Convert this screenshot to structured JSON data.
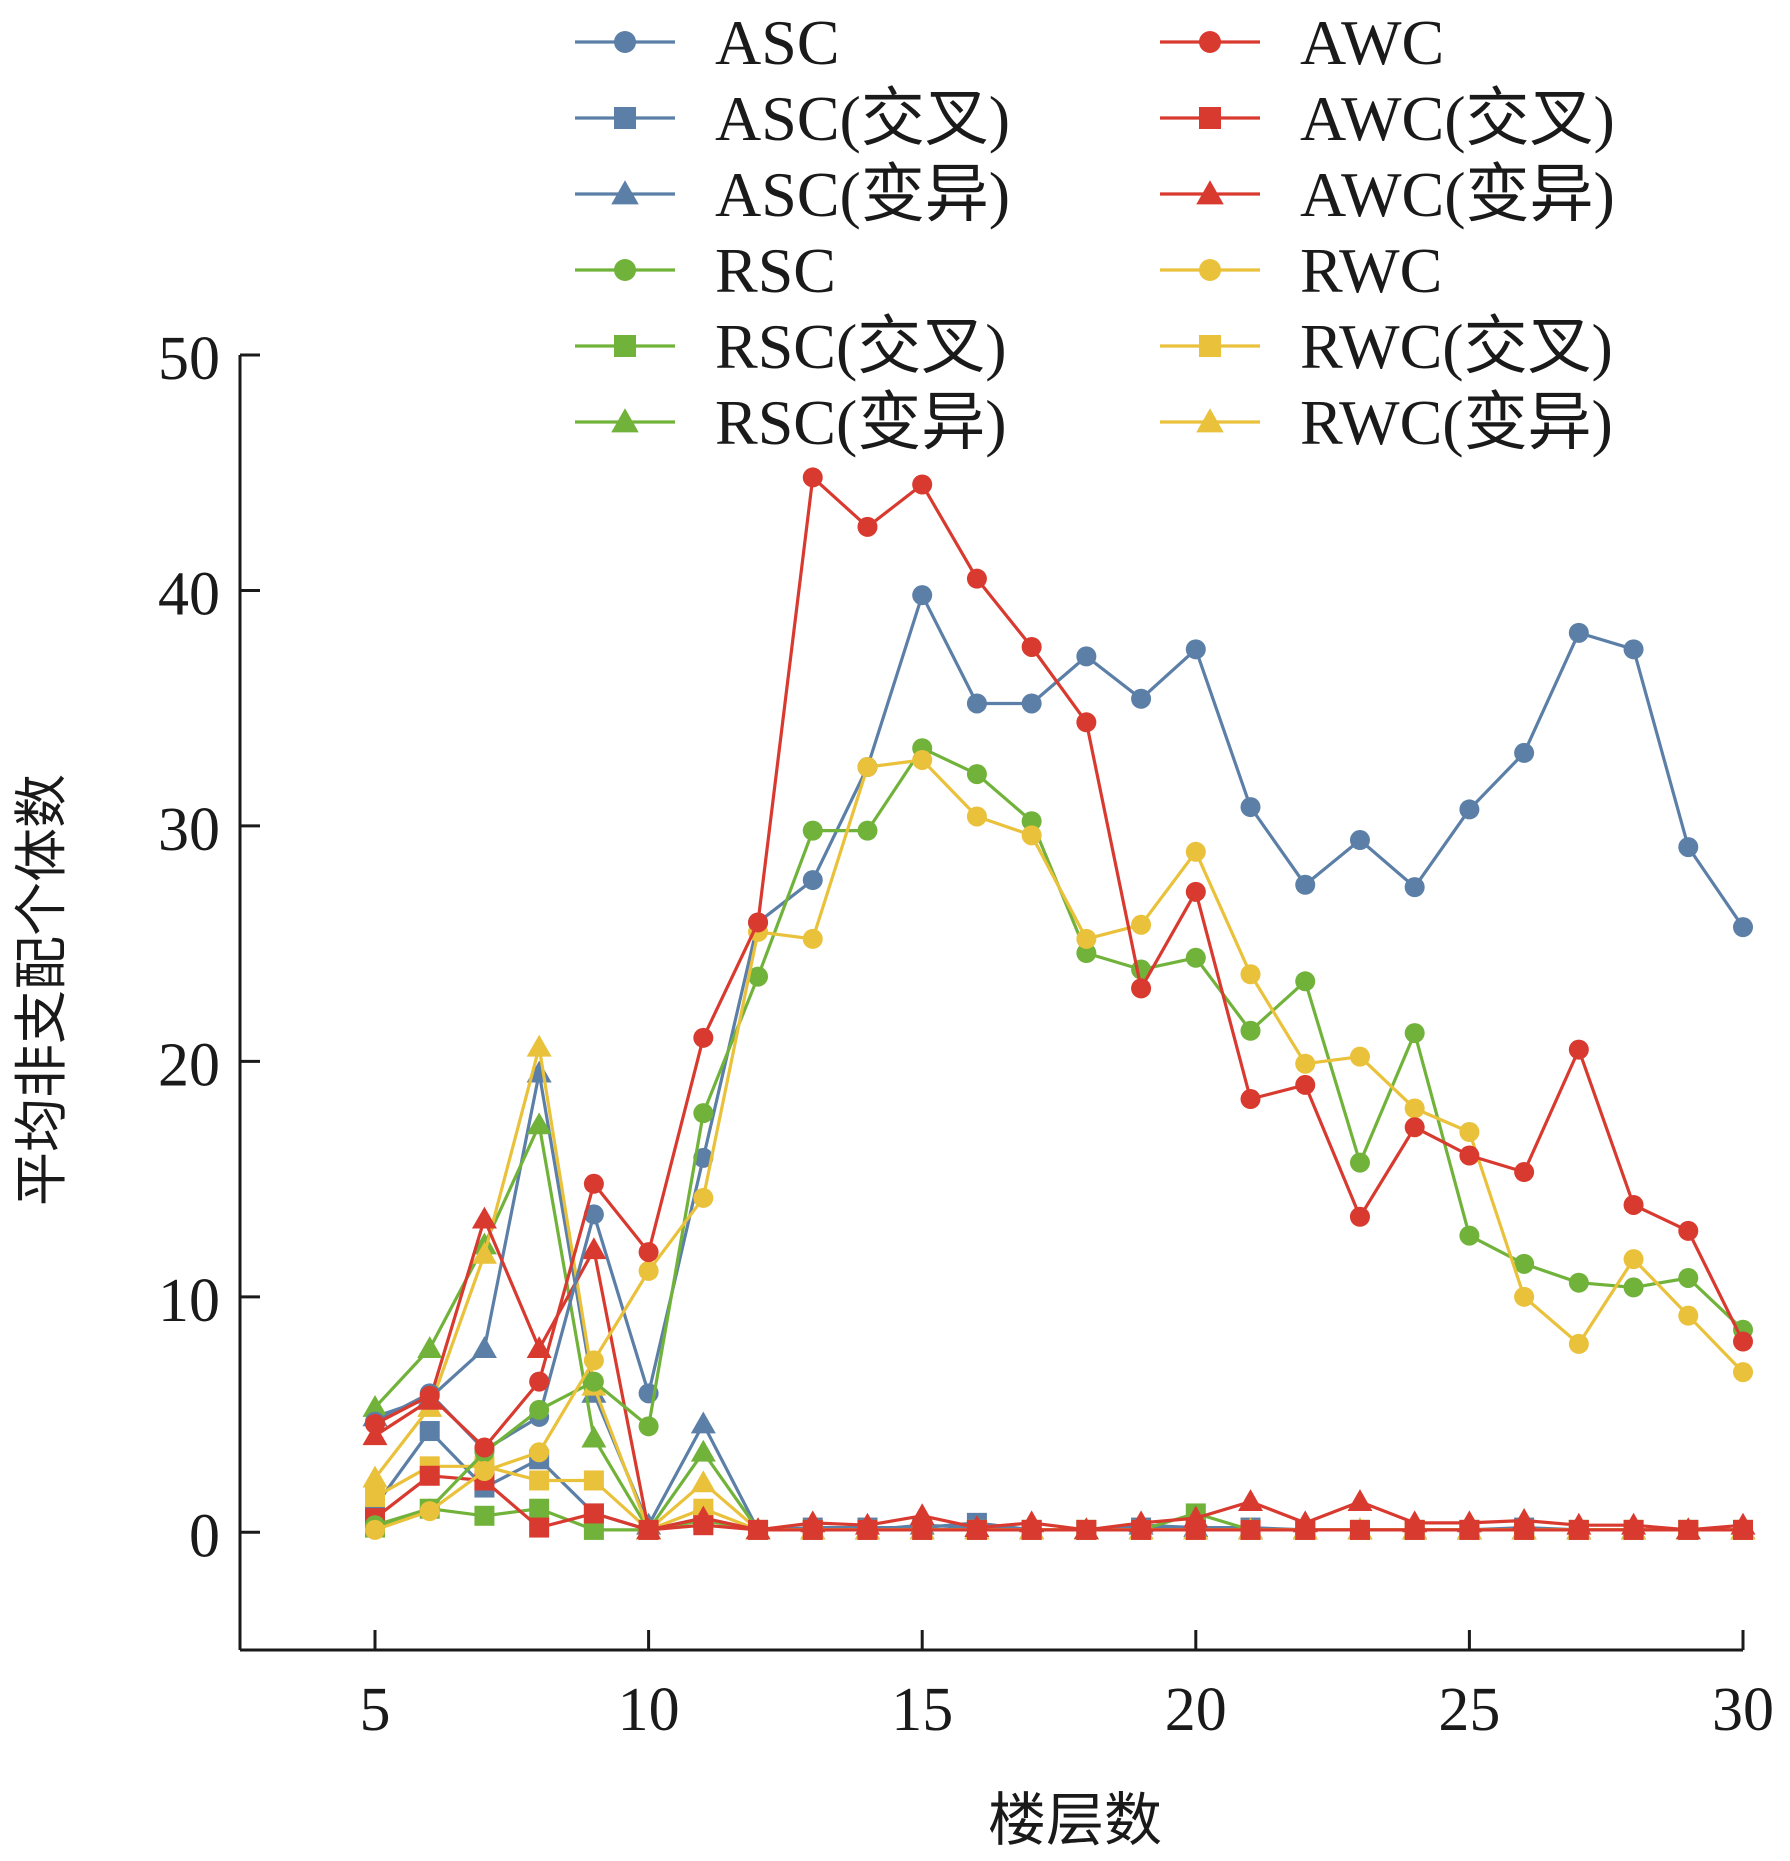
{
  "chart_data": {
    "type": "line",
    "title": "",
    "xlabel": "楼层数",
    "ylabel": "平均非支配个体数",
    "xlim": [
      2.5,
      30
    ],
    "ylim": [
      -5,
      50
    ],
    "xticks": [
      5,
      10,
      15,
      20,
      25,
      30
    ],
    "yticks": [
      0,
      10,
      20,
      30,
      40,
      50
    ],
    "x": [
      5,
      6,
      7,
      8,
      9,
      10,
      11,
      12,
      13,
      14,
      15,
      16,
      17,
      18,
      19,
      20,
      21,
      22,
      23,
      24,
      25,
      26,
      27,
      28,
      29,
      30
    ],
    "legend_position": "top",
    "series": [
      {
        "name": "ASC",
        "color": "#5b7fa6",
        "marker": "circle",
        "values": [
          4.7,
          5.9,
          3.5,
          4.9,
          13.5,
          5.9,
          15.9,
          25.9,
          27.7,
          32.5,
          39.8,
          35.2,
          35.2,
          37.2,
          35.4,
          37.5,
          30.8,
          27.5,
          29.4,
          27.4,
          30.7,
          33.1,
          38.2,
          37.5,
          29.1,
          25.7
        ]
      },
      {
        "name": "ASC(交叉)",
        "color": "#5b7fa6",
        "marker": "square",
        "values": [
          1.1,
          4.3,
          1.9,
          3.1,
          0.8,
          0.1,
          0.6,
          0.1,
          0.2,
          0.2,
          0.2,
          0.4,
          0.1,
          0.1,
          0.2,
          0.2,
          0.2,
          0.1,
          0.1,
          0.1,
          0.1,
          0.2,
          0.1,
          0.1,
          0.1,
          0.1
        ]
      },
      {
        "name": "ASC(变异)",
        "color": "#5b7fa6",
        "marker": "triangle",
        "values": [
          4.9,
          5.7,
          7.8,
          19.5,
          5.9,
          0.3,
          4.6,
          0.1,
          0.1,
          0.1,
          0.3,
          0.2,
          0.1,
          0.1,
          0.3,
          0.2,
          0.1,
          0.1,
          0.1,
          0.1,
          0.1,
          0.1,
          0.1,
          0.1,
          0.1,
          0.1
        ]
      },
      {
        "name": "AWC",
        "color": "#d93a2f",
        "marker": "circle",
        "values": [
          4.6,
          5.8,
          3.6,
          6.4,
          14.8,
          11.9,
          21.0,
          25.9,
          44.8,
          42.7,
          44.5,
          40.5,
          37.6,
          34.4,
          23.1,
          27.2,
          18.4,
          19.0,
          13.4,
          17.2,
          16.0,
          15.3,
          20.5,
          13.9,
          12.8,
          8.1
        ]
      },
      {
        "name": "AWC(交叉)",
        "color": "#d93a2f",
        "marker": "square",
        "values": [
          0.6,
          2.4,
          2.2,
          0.2,
          0.8,
          0.1,
          0.3,
          0.1,
          0.1,
          0.1,
          0.1,
          0.1,
          0.1,
          0.1,
          0.1,
          0.1,
          0.1,
          0.1,
          0.1,
          0.1,
          0.1,
          0.1,
          0.1,
          0.1,
          0.1,
          0.1
        ]
      },
      {
        "name": "AWC(变异)",
        "color": "#d93a2f",
        "marker": "triangle",
        "values": [
          4.1,
          5.6,
          13.3,
          7.8,
          12.0,
          0.1,
          0.6,
          0.1,
          0.4,
          0.3,
          0.7,
          0.2,
          0.4,
          0.1,
          0.4,
          0.6,
          1.3,
          0.4,
          1.3,
          0.4,
          0.4,
          0.5,
          0.3,
          0.3,
          0.1,
          0.3
        ]
      },
      {
        "name": "RSC",
        "color": "#71b33a",
        "marker": "circle",
        "values": [
          0.3,
          1.0,
          3.4,
          5.2,
          6.4,
          4.5,
          17.8,
          23.6,
          29.8,
          29.8,
          33.3,
          32.2,
          30.2,
          24.6,
          23.9,
          24.4,
          21.3,
          23.4,
          15.7,
          21.2,
          12.6,
          11.4,
          10.6,
          10.4,
          10.8,
          8.6
        ]
      },
      {
        "name": "RSC(交叉)",
        "color": "#71b33a",
        "marker": "square",
        "values": [
          0.2,
          1.0,
          0.7,
          1.0,
          0.1,
          0.1,
          0.5,
          0.1,
          0.1,
          0.1,
          0.1,
          0.1,
          0.1,
          0.1,
          0.1,
          0.8,
          0.1,
          0.1,
          0.1,
          0.1,
          0.1,
          0.1,
          0.1,
          0.1,
          0.1,
          0.1
        ]
      },
      {
        "name": "RSC(变异)",
        "color": "#71b33a",
        "marker": "triangle",
        "values": [
          5.3,
          7.8,
          12.2,
          17.3,
          4.0,
          0.1,
          3.4,
          0.1,
          0.1,
          0.1,
          0.1,
          0.1,
          0.1,
          0.1,
          0.1,
          0.1,
          0.1,
          0.1,
          0.1,
          0.1,
          0.1,
          0.1,
          0.1,
          0.1,
          0.1,
          0.1
        ]
      },
      {
        "name": "RWC",
        "color": "#e9c13a",
        "marker": "circle",
        "values": [
          0.1,
          0.9,
          2.6,
          3.4,
          7.3,
          11.1,
          14.2,
          25.5,
          25.2,
          32.5,
          32.8,
          30.4,
          29.6,
          25.2,
          25.8,
          28.9,
          23.7,
          19.9,
          20.2,
          18.0,
          17.0,
          10.0,
          8.0,
          11.6,
          9.2,
          6.8
        ]
      },
      {
        "name": "RWC(交叉)",
        "color": "#e9c13a",
        "marker": "square",
        "values": [
          1.5,
          2.8,
          2.8,
          2.2,
          2.2,
          0.1,
          1.0,
          0.1,
          0.1,
          0.1,
          0.1,
          0.1,
          0.1,
          0.1,
          0.1,
          0.1,
          0.1,
          0.1,
          0.1,
          0.1,
          0.1,
          0.1,
          0.1,
          0.1,
          0.1,
          0.1
        ]
      },
      {
        "name": "RWC(变异)",
        "color": "#e9c13a",
        "marker": "triangle",
        "values": [
          2.3,
          5.3,
          11.8,
          20.6,
          6.2,
          0.1,
          2.1,
          0.1,
          0.1,
          0.1,
          0.1,
          0.1,
          0.1,
          0.1,
          0.1,
          0.1,
          0.1,
          0.1,
          0.1,
          0.1,
          0.1,
          0.1,
          0.1,
          0.1,
          0.1,
          0.1
        ]
      }
    ]
  }
}
